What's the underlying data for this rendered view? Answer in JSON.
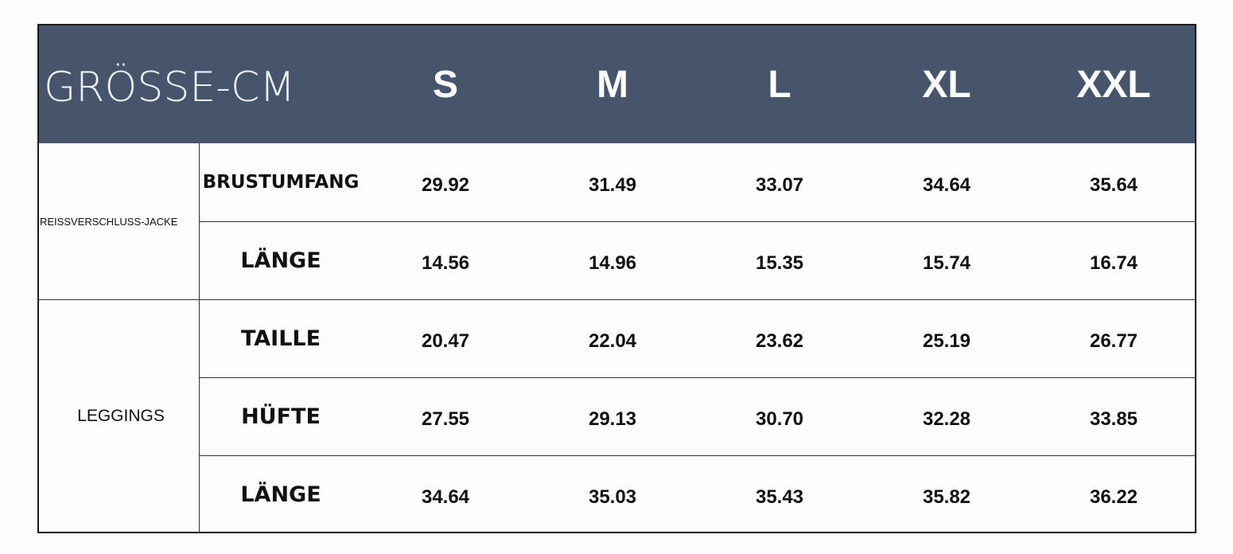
{
  "header": {
    "title": "GRÖSSE-CM",
    "sizes": [
      "S",
      "M",
      "L",
      "XL",
      "XXL"
    ]
  },
  "groups": [
    {
      "label": "REISSVERSCHLUSS-JACKE",
      "rows": [
        {
          "label": "BRUSTUMFANG",
          "values": [
            "29.92",
            "31.49",
            "33.07",
            "34.64",
            "35.64"
          ]
        },
        {
          "label": "LÄNGE",
          "values": [
            "14.56",
            "14.96",
            "15.35",
            "15.74",
            "16.74"
          ]
        }
      ]
    },
    {
      "label": "LEGGINGS",
      "rows": [
        {
          "label": "TAILLE",
          "values": [
            "20.47",
            "22.04",
            "23.62",
            "25.19",
            "26.77"
          ]
        },
        {
          "label": "HÜFTE",
          "values": [
            "27.55",
            "29.13",
            "30.70",
            "32.28",
            "33.85"
          ]
        },
        {
          "label": "LÄNGE",
          "values": [
            "34.64",
            "35.03",
            "35.43",
            "35.82",
            "36.22"
          ]
        }
      ]
    }
  ]
}
